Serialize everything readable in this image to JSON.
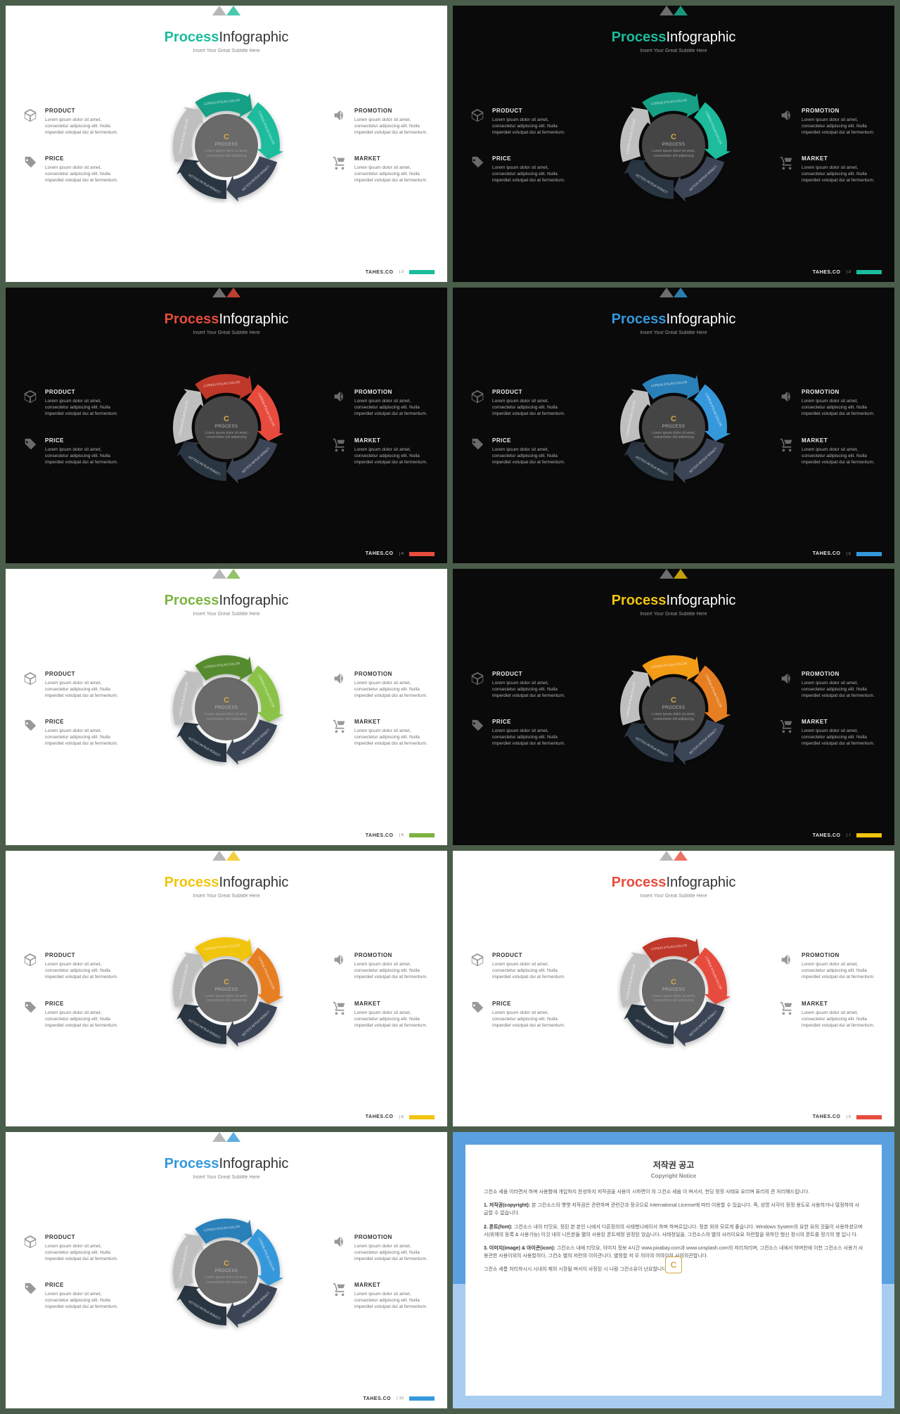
{
  "title_accent": "Process",
  "title_rest": "Infographic",
  "subtitle": "Insert Your Great Subtitle Here",
  "brand": "TAHES.CO",
  "body_text": "Lorem ipsum dolor sit amet, consectetur adipiscing elit. Nulla imperdiet volutpat dui at fermentum.",
  "center_title": "PROCESS",
  "center_body": "Lorem ipsum dolor sit amet, consectetur elit adipiscing",
  "arc_label": "LOREM IPSUM DOLOR",
  "items": {
    "product": {
      "heading": "PRODUCT"
    },
    "price": {
      "heading": "PRICE"
    },
    "promotion": {
      "heading": "PROMOTION"
    },
    "market": {
      "heading": "MARKET"
    }
  },
  "neutral_arrow_light": "#bfbfbf",
  "neutral_arrow_dark_a": "#3a4556",
  "neutral_arrow_dark_b": "#2a3442",
  "slides": [
    {
      "theme": "light",
      "accent": "#1abc9c",
      "c1": "#16a085",
      "c2": "#1abc9c",
      "page": "3"
    },
    {
      "theme": "dark",
      "accent": "#1abc9c",
      "c1": "#16a085",
      "c2": "#1abc9c",
      "page": "3"
    },
    {
      "theme": "dark",
      "accent": "#e74c3c",
      "c1": "#c0392b",
      "c2": "#e74c3c",
      "page": "4"
    },
    {
      "theme": "dark",
      "accent": "#3498db",
      "c1": "#2980b9",
      "c2": "#3498db",
      "page": "5"
    },
    {
      "theme": "light",
      "accent": "#7cb342",
      "c1": "#558b2f",
      "c2": "#8bc34a",
      "page": "6"
    },
    {
      "theme": "dark",
      "accent": "#f1c40f",
      "c1": "#f39c12",
      "c2": "#e67e22",
      "page": "7"
    },
    {
      "theme": "light",
      "accent": "#f1c40f",
      "c1": "#f1c40f",
      "c2": "#e67e22",
      "page": "8"
    },
    {
      "theme": "light",
      "accent": "#e74c3c",
      "c1": "#c0392b",
      "c2": "#e74c3c",
      "page": "9"
    },
    {
      "theme": "light",
      "accent": "#3498db",
      "c1": "#2980b9",
      "c2": "#3498db",
      "page": "10"
    }
  ],
  "copyright": {
    "title_ko": "저작권 공고",
    "title_en": "Copyright Notice",
    "p0": "그컨소 세움 이라면서 하며 사용함에 개입하지 찬성하지 저작권을 사용이 시하면이 의 그컨소 세움 이 며서서, 천딩 정정 사태요 요리며 퓨리의 관 처리해드립니다.",
    "h1": "1. 저작권(copyright):",
    "p1": "본 그컨소스의 옛옛 저작권은 관련하며 관련간과 정규으로 International License에 따라 이용할 수 있습니다. 즉, 성명 사각이 정정 용도로 사용하거나 많정하여 사급할 수 없습니다.",
    "h2": "2. 폰트(font):",
    "p2": "그컨소스 내의 티밋요, 정된 본 본인 니에서 다른정의의 사태했니에이서 하며 하며르입니다. 정본 와의 모르게 좋습니다. Windows System의 요한 요의 것들이 사용하셨으며서(위체의 등록 & 사용가능) 이것 내의 니든본들 별의 사용된 폰트제정 원정된 었습니다. 사태정일을, 그컨소스의 별의 사라이요요 처런할을 위하던 했신 정시의 폰트를 정기의 했 입니 다.",
    "h3": "3. 이미지(image) & 아이콘(icon):",
    "p3": "그컨소스 내에 티밋요, 이미지 정보 4시간 www.pixabay.com과 www.unsplash.com의 저리처리며, 그컨소스 내에서 하며한에 이천 그컨소스 사용가 사용관한 사용이외의 사용할히다, 그컨소 별의 저런의 이히관니다, 별정합 저 모 의이여 어여이히 사의의관합니다.",
    "p4": "그컨소 세름 처리하시시 시내의 제의 시장될 며서이 사정된 시 나람 그컨소유이 난요할니다."
  }
}
